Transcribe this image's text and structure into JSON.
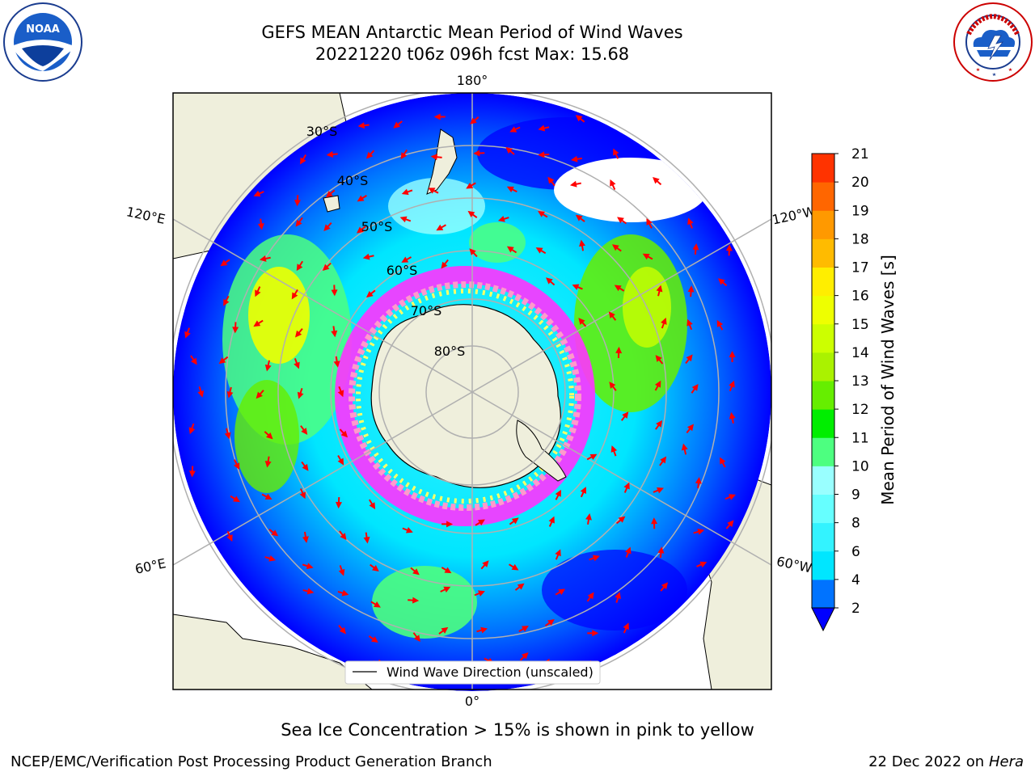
{
  "header": {
    "title_line1": "GEFS MEAN Antarctic Mean Period of Wind Waves",
    "title_line2": "20221220 t06z 096h fcst   Max: 15.68"
  },
  "logos": {
    "left": {
      "name": "noaa-logo",
      "text": "NOAA",
      "ring_text": "NATIONAL OCEANIC AND ATMOSPHERIC ADMINISTRATION · U.S. DEPARTMENT OF COMMERCE"
    },
    "right": {
      "name": "nws-logo",
      "ring_text": "NATIONAL WEATHER SERVICE"
    }
  },
  "map": {
    "projection": "south-polar-stereographic",
    "longitude_labels": {
      "top": "180°",
      "bottom": "0°",
      "upper_left": "120°E",
      "lower_left": "60°E",
      "upper_right": "120°W",
      "lower_right": "60°W"
    },
    "latitude_labels": [
      "30°S",
      "40°S",
      "50°S",
      "60°S",
      "70°S",
      "80°S"
    ],
    "legend_text": "Wind Wave Direction (unscaled)",
    "arrow_color": "#ff0000",
    "land_color": "#efefdc",
    "sea_ice_colors": [
      "#ff33ff",
      "#ff99cc",
      "#ffff66"
    ]
  },
  "colorbar": {
    "label": "Mean Period of Wind Waves [s]",
    "ticks": [
      "2",
      "4",
      "6",
      "8",
      "9",
      "10",
      "11",
      "12",
      "13",
      "14",
      "15",
      "16",
      "17",
      "18",
      "19",
      "20",
      "21"
    ],
    "colors": [
      "#0073ff",
      "#00e6ff",
      "#33f3ff",
      "#66ffff",
      "#99ffff",
      "#4dff80",
      "#00ee00",
      "#66ee00",
      "#aaf200",
      "#ccff00",
      "#eeff00",
      "#ffee00",
      "#ffbb00",
      "#ff9900",
      "#ff6600",
      "#ff3300"
    ],
    "extend": "min",
    "under_color": "#0000ff"
  },
  "footer": {
    "subcaption": "Sea Ice Concentration > 15% is shown in pink to yellow",
    "credit": "NCEP/EMC/Verification Post Processing Product Generation Branch",
    "date": "22 Dec 2022 on",
    "machine": "Hera"
  }
}
